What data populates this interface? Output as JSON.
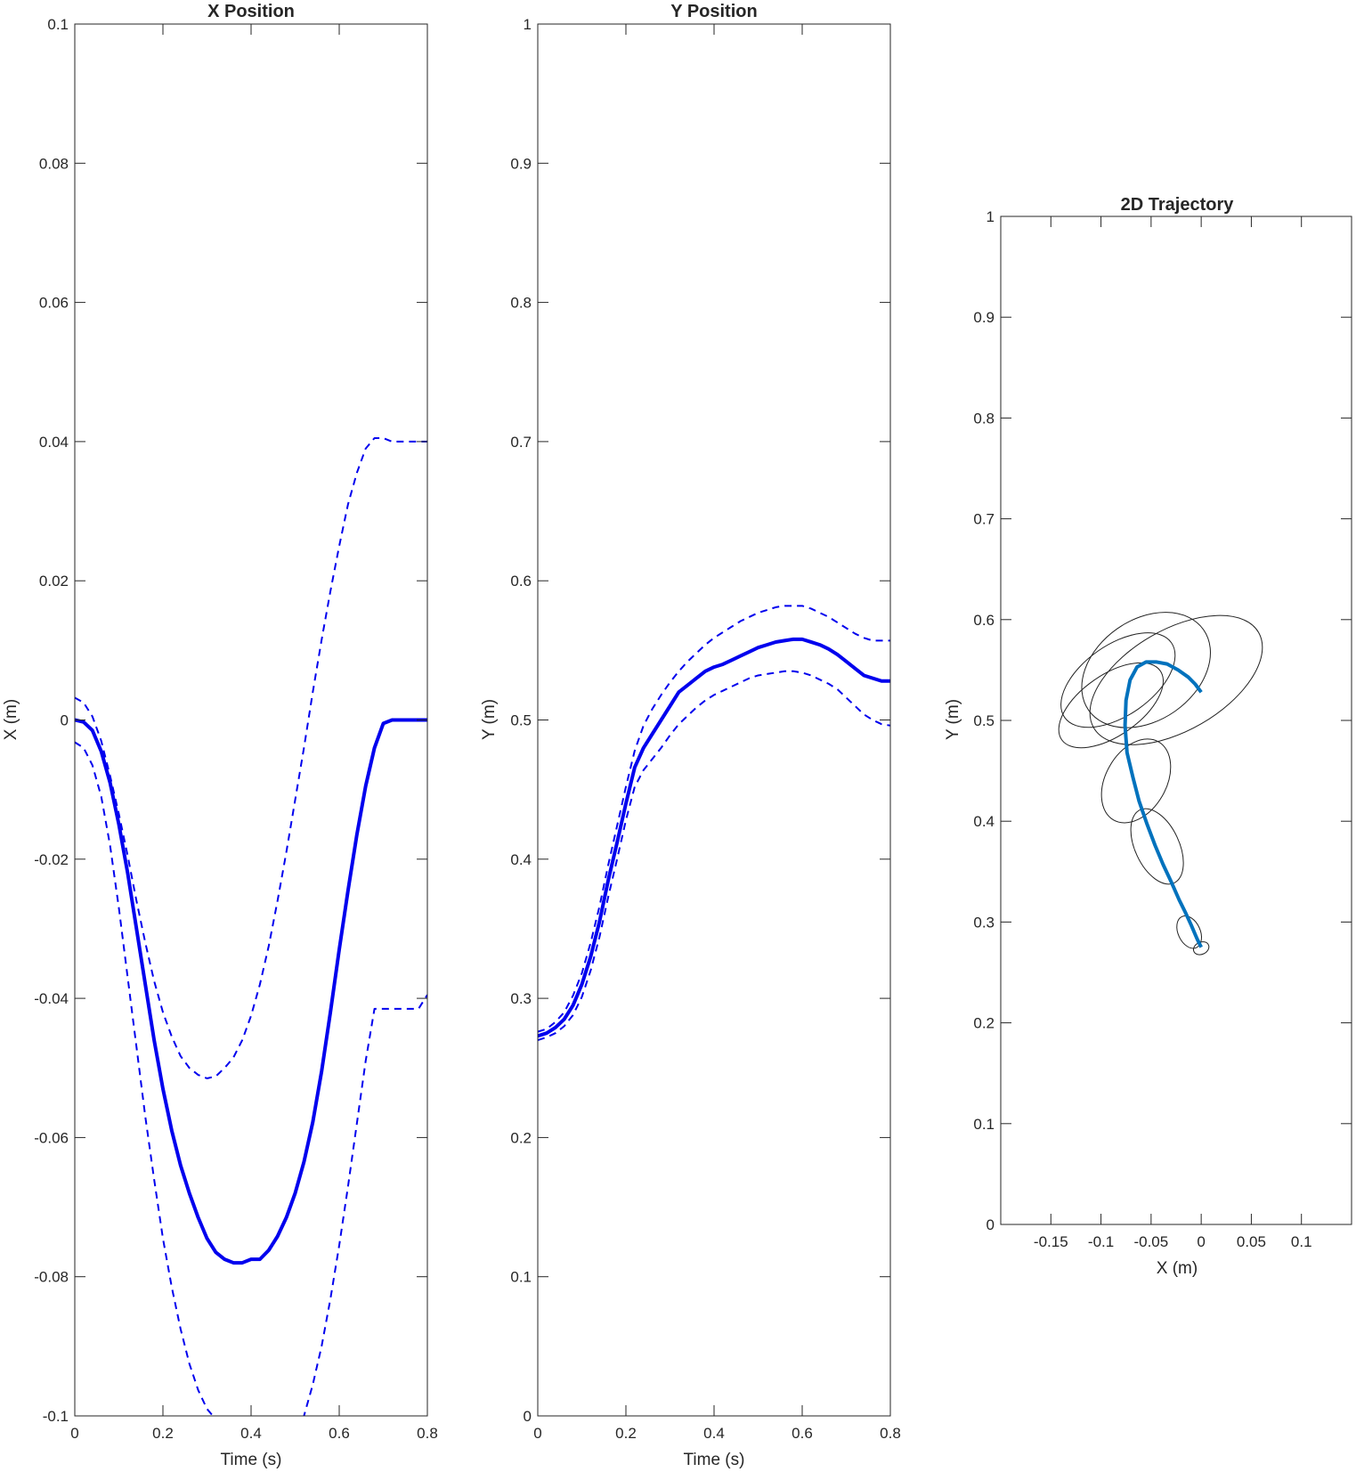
{
  "chart_data": [
    {
      "type": "line",
      "title": "X Position",
      "xlabel": "Time (s)",
      "ylabel": "X (m)",
      "xlim": [
        0,
        0.8
      ],
      "ylim": [
        -0.1,
        0.1
      ],
      "xticks": [
        0,
        0.2,
        0.4,
        0.6,
        0.8
      ],
      "xtick_labels": [
        "0",
        "0.2",
        "0.4",
        "0.6",
        "0.8"
      ],
      "yticks": [
        -0.1,
        -0.08,
        -0.06,
        -0.04,
        -0.02,
        0,
        0.02,
        0.04,
        0.06,
        0.08,
        0.1
      ],
      "ytick_labels": [
        "-0.1",
        "-0.08",
        "-0.06",
        "-0.04",
        "-0.02",
        "0",
        "0.02",
        "0.04",
        "0.06",
        "0.08",
        "0.1"
      ],
      "grid": false,
      "series": [
        {
          "style": "solid",
          "color": "#0000ee",
          "x": [
            0,
            0.02,
            0.04,
            0.06,
            0.08,
            0.1,
            0.12,
            0.14,
            0.16,
            0.18,
            0.2,
            0.22,
            0.24,
            0.26,
            0.28,
            0.3,
            0.32,
            0.34,
            0.36,
            0.38,
            0.4,
            0.42,
            0.44,
            0.46,
            0.48,
            0.5,
            0.52,
            0.54,
            0.56,
            0.58,
            0.6,
            0.62,
            0.64,
            0.66,
            0.68,
            0.7,
            0.72,
            0.74,
            0.76,
            0.78,
            0.8
          ],
          "y": [
            0,
            -0.0003,
            -0.0015,
            -0.0045,
            -0.009,
            -0.015,
            -0.022,
            -0.03,
            -0.038,
            -0.046,
            -0.053,
            -0.059,
            -0.064,
            -0.068,
            -0.0715,
            -0.0745,
            -0.0765,
            -0.0775,
            -0.078,
            -0.078,
            -0.0775,
            -0.0775,
            -0.0762,
            -0.0742,
            -0.0715,
            -0.068,
            -0.0635,
            -0.0578,
            -0.0505,
            -0.042,
            -0.033,
            -0.0245,
            -0.0165,
            -0.0095,
            -0.004,
            -0.0005,
            0,
            0,
            0,
            0,
            0
          ]
        },
        {
          "style": "dashed",
          "color": "#0000ee",
          "x": [
            0,
            0.02,
            0.04,
            0.06,
            0.08,
            0.1,
            0.12,
            0.14,
            0.16,
            0.18,
            0.2,
            0.22,
            0.24,
            0.26,
            0.28,
            0.3,
            0.32,
            0.34,
            0.36,
            0.38,
            0.4,
            0.42,
            0.44,
            0.46,
            0.48,
            0.5,
            0.52,
            0.54,
            0.56,
            0.58,
            0.6,
            0.62,
            0.64,
            0.66,
            0.68,
            0.7,
            0.72,
            0.74,
            0.76,
            0.78,
            0.8
          ],
          "y": [
            0.0032,
            0.0025,
            0.0005,
            -0.003,
            -0.008,
            -0.0135,
            -0.0195,
            -0.026,
            -0.032,
            -0.0375,
            -0.042,
            -0.0455,
            -0.0483,
            -0.05,
            -0.051,
            -0.0515,
            -0.0512,
            -0.05,
            -0.0485,
            -0.046,
            -0.0425,
            -0.038,
            -0.0325,
            -0.026,
            -0.019,
            -0.0115,
            -0.004,
            0.004,
            0.0115,
            0.0185,
            0.025,
            0.031,
            0.0355,
            0.039,
            0.0405,
            0.0405,
            0.04,
            0.04,
            0.04,
            0.04,
            0.04
          ]
        },
        {
          "style": "dashed",
          "color": "#0000ee",
          "x": [
            0,
            0.02,
            0.04,
            0.06,
            0.08,
            0.1,
            0.12,
            0.14,
            0.16,
            0.18,
            0.2,
            0.22,
            0.24,
            0.26,
            0.28,
            0.3,
            0.32,
            0.34,
            0.36,
            0.37,
            0.38,
            0.5,
            0.51,
            0.52,
            0.54,
            0.56,
            0.58,
            0.6,
            0.62,
            0.64,
            0.66,
            0.68,
            0.7,
            0.72,
            0.74,
            0.76,
            0.78,
            0.8
          ],
          "y": [
            -0.0032,
            -0.004,
            -0.0065,
            -0.011,
            -0.018,
            -0.027,
            -0.037,
            -0.047,
            -0.057,
            -0.066,
            -0.0745,
            -0.0815,
            -0.0875,
            -0.0925,
            -0.0963,
            -0.099,
            -0.1005,
            -0.1005,
            -0.1005,
            -0.1005,
            -0.1005,
            -0.1005,
            -0.1005,
            -0.1,
            -0.0955,
            -0.09,
            -0.0832,
            -0.0755,
            -0.067,
            -0.058,
            -0.049,
            -0.0415,
            -0.0415,
            -0.0415,
            -0.0415,
            -0.0415,
            -0.0415,
            -0.0395
          ]
        }
      ]
    },
    {
      "type": "line",
      "title": "Y Position",
      "xlabel": "Time (s)",
      "ylabel": "Y (m)",
      "xlim": [
        0,
        0.8
      ],
      "ylim": [
        0,
        1
      ],
      "xticks": [
        0,
        0.2,
        0.4,
        0.6,
        0.8
      ],
      "xtick_labels": [
        "0",
        "0.2",
        "0.4",
        "0.6",
        "0.8"
      ],
      "yticks": [
        0,
        0.1,
        0.2,
        0.3,
        0.4,
        0.5,
        0.6,
        0.7,
        0.8,
        0.9,
        1
      ],
      "ytick_labels": [
        "0",
        "0.1",
        "0.2",
        "0.3",
        "0.4",
        "0.5",
        "0.6",
        "0.7",
        "0.8",
        "0.9",
        "1"
      ],
      "grid": false,
      "series": [
        {
          "style": "solid",
          "color": "#0000ee",
          "x": [
            0,
            0.02,
            0.04,
            0.06,
            0.08,
            0.1,
            0.12,
            0.14,
            0.16,
            0.18,
            0.2,
            0.22,
            0.24,
            0.26,
            0.28,
            0.3,
            0.32,
            0.34,
            0.36,
            0.38,
            0.4,
            0.42,
            0.44,
            0.46,
            0.48,
            0.5,
            0.52,
            0.54,
            0.56,
            0.58,
            0.6,
            0.62,
            0.64,
            0.66,
            0.68,
            0.7,
            0.72,
            0.74,
            0.76,
            0.78,
            0.8
          ],
          "y": [
            0.273,
            0.275,
            0.279,
            0.285,
            0.295,
            0.31,
            0.33,
            0.355,
            0.385,
            0.412,
            0.44,
            0.466,
            0.48,
            0.49,
            0.5,
            0.51,
            0.52,
            0.525,
            0.53,
            0.535,
            0.538,
            0.54,
            0.543,
            0.546,
            0.549,
            0.552,
            0.554,
            0.556,
            0.557,
            0.558,
            0.558,
            0.556,
            0.554,
            0.551,
            0.547,
            0.542,
            0.537,
            0.532,
            0.53,
            0.528,
            0.528
          ]
        },
        {
          "style": "dashed",
          "color": "#0000ee",
          "x": [
            0,
            0.02,
            0.04,
            0.06,
            0.08,
            0.1,
            0.12,
            0.14,
            0.16,
            0.18,
            0.2,
            0.22,
            0.24,
            0.26,
            0.28,
            0.3,
            0.32,
            0.34,
            0.36,
            0.38,
            0.4,
            0.42,
            0.44,
            0.46,
            0.48,
            0.5,
            0.52,
            0.54,
            0.56,
            0.58,
            0.6,
            0.62,
            0.64,
            0.66,
            0.68,
            0.7,
            0.72,
            0.74,
            0.76,
            0.78,
            0.8
          ],
          "y": [
            0.276,
            0.278,
            0.283,
            0.29,
            0.302,
            0.318,
            0.34,
            0.366,
            0.396,
            0.424,
            0.452,
            0.478,
            0.496,
            0.508,
            0.518,
            0.527,
            0.535,
            0.542,
            0.548,
            0.554,
            0.559,
            0.563,
            0.567,
            0.571,
            0.574,
            0.577,
            0.579,
            0.581,
            0.582,
            0.582,
            0.582,
            0.58,
            0.577,
            0.574,
            0.57,
            0.566,
            0.562,
            0.559,
            0.557,
            0.557,
            0.557
          ]
        },
        {
          "style": "dashed",
          "color": "#0000ee",
          "x": [
            0,
            0.02,
            0.04,
            0.06,
            0.08,
            0.1,
            0.12,
            0.14,
            0.16,
            0.18,
            0.2,
            0.22,
            0.24,
            0.26,
            0.28,
            0.3,
            0.32,
            0.34,
            0.36,
            0.38,
            0.4,
            0.42,
            0.44,
            0.46,
            0.48,
            0.5,
            0.52,
            0.54,
            0.56,
            0.58,
            0.6,
            0.62,
            0.64,
            0.66,
            0.68,
            0.7,
            0.72,
            0.74,
            0.76,
            0.78,
            0.8
          ],
          "y": [
            0.27,
            0.272,
            0.275,
            0.28,
            0.288,
            0.301,
            0.32,
            0.344,
            0.373,
            0.4,
            0.428,
            0.452,
            0.464,
            0.472,
            0.48,
            0.489,
            0.497,
            0.503,
            0.509,
            0.514,
            0.518,
            0.521,
            0.524,
            0.527,
            0.53,
            0.532,
            0.533,
            0.534,
            0.535,
            0.535,
            0.534,
            0.532,
            0.529,
            0.526,
            0.522,
            0.516,
            0.51,
            0.504,
            0.5,
            0.497,
            0.496
          ]
        }
      ]
    },
    {
      "type": "line",
      "title": "2D Trajectory",
      "xlabel": "X (m)",
      "ylabel": "Y (m)",
      "xlim": [
        -0.2,
        0.15
      ],
      "ylim": [
        0,
        1
      ],
      "xticks": [
        -0.15,
        -0.1,
        -0.05,
        0,
        0.05,
        0.1
      ],
      "xtick_labels": [
        "-0.15",
        "-0.1",
        "-0.05",
        "0",
        "0.05",
        "0.1"
      ],
      "yticks": [
        0,
        0.1,
        0.2,
        0.3,
        0.4,
        0.5,
        0.6,
        0.7,
        0.8,
        0.9,
        1
      ],
      "ytick_labels": [
        "0",
        "0.1",
        "0.2",
        "0.3",
        "0.4",
        "0.5",
        "0.6",
        "0.7",
        "0.8",
        "0.9",
        "1"
      ],
      "grid": false,
      "series": [
        {
          "style": "solid",
          "color": "#0072bd",
          "x": [
            0,
            -0.004,
            -0.01,
            -0.016,
            -0.022,
            -0.03,
            -0.038,
            -0.046,
            -0.054,
            -0.062,
            -0.068,
            -0.074,
            -0.076,
            -0.075,
            -0.071,
            -0.064,
            -0.055,
            -0.045,
            -0.034,
            -0.023,
            -0.013,
            -0.006,
            0
          ],
          "y": [
            0.275,
            0.283,
            0.297,
            0.31,
            0.322,
            0.34,
            0.357,
            0.376,
            0.397,
            0.42,
            0.443,
            0.468,
            0.495,
            0.52,
            0.54,
            0.553,
            0.558,
            0.558,
            0.556,
            0.55,
            0.543,
            0.536,
            0.528
          ]
        }
      ],
      "ellipses": [
        {
          "cx": 0,
          "cy": 0.274,
          "rx": 0.008,
          "ry": 0.006,
          "angle": 25
        },
        {
          "cx": -0.012,
          "cy": 0.29,
          "rx": 0.011,
          "ry": 0.017,
          "angle": 25
        },
        {
          "cx": -0.044,
          "cy": 0.375,
          "rx": 0.022,
          "ry": 0.04,
          "angle": 25
        },
        {
          "cx": -0.065,
          "cy": 0.44,
          "rx": 0.045,
          "ry": 0.03,
          "angle": 60
        },
        {
          "cx": -0.09,
          "cy": 0.515,
          "rx": 0.06,
          "ry": 0.03,
          "angle": 35
        },
        {
          "cx": -0.083,
          "cy": 0.54,
          "rx": 0.065,
          "ry": 0.035,
          "angle": 35
        },
        {
          "cx": -0.055,
          "cy": 0.55,
          "rx": 0.07,
          "ry": 0.05,
          "angle": 35
        },
        {
          "cx": -0.025,
          "cy": 0.54,
          "rx": 0.095,
          "ry": 0.05,
          "angle": 30
        }
      ]
    }
  ]
}
